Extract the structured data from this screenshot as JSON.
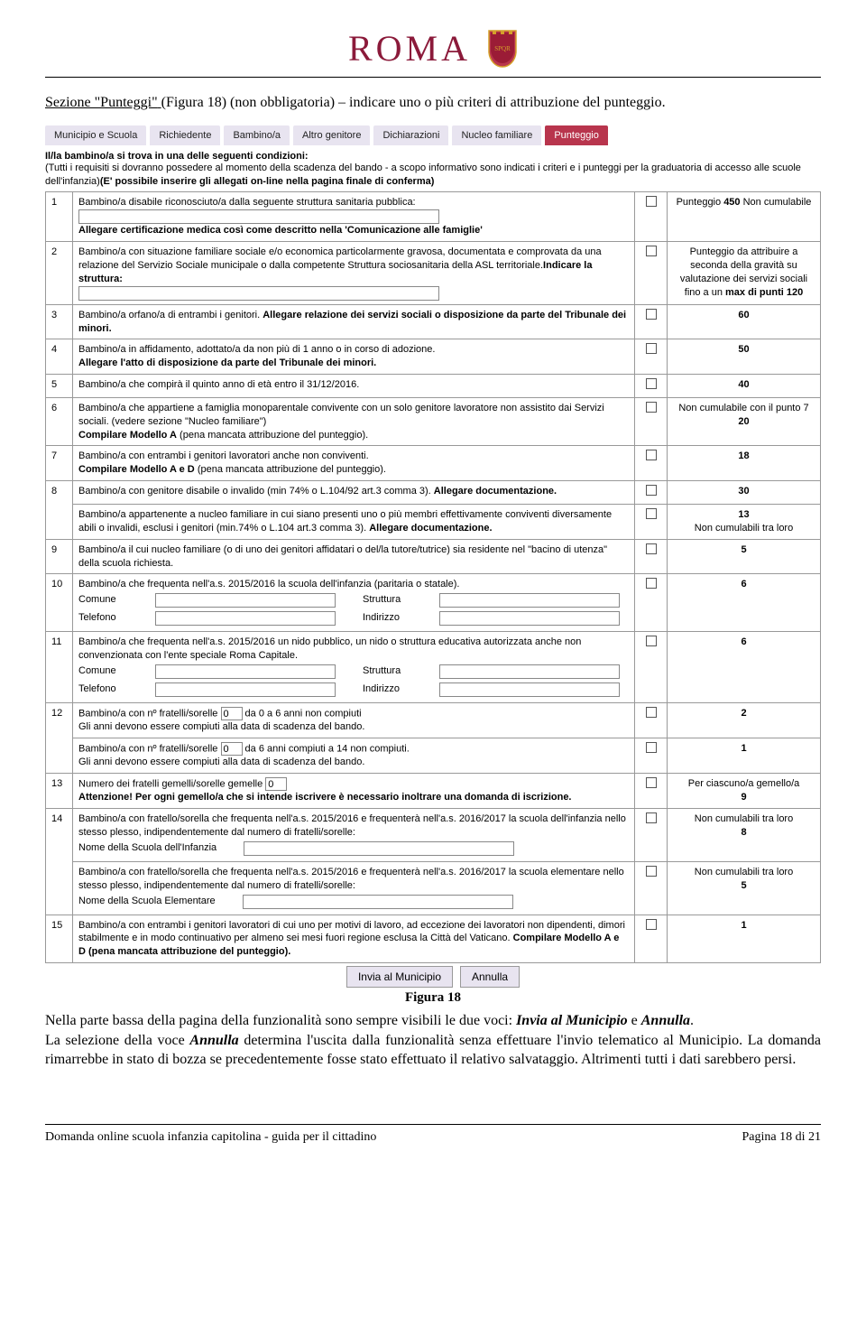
{
  "header": {
    "logo_text": "ROMA"
  },
  "intro": {
    "section_label": "Sezione \"Punteggi\"",
    "figure_ref": "(Figura 18)",
    "rest": "  (non obbligatoria) – indicare uno o più criteri di attribuzione del punteggio."
  },
  "tabs": [
    "Municipio e Scuola",
    "Richiedente",
    "Bambino/a",
    "Altro genitore",
    "Dichiarazioni",
    "Nucleo familiare",
    "Punteggio"
  ],
  "active_tab_index": 6,
  "cond_title": "Il/la bambino/a si trova in una delle seguenti condizioni:",
  "cond_sub_pre": "(Tutti i requisiti si dovranno possedere al momento della scadenza del bando - a scopo informativo sono indicati i criteri e i punteggi per la graduatoria di accesso alle scuole dell'infanzia)",
  "cond_sub_bold": "(E' possibile inserire gli allegati on-line nella pagina finale di conferma)",
  "rows": [
    {
      "n": "1",
      "desc": "Bambino/a disabile riconosciuto/a dalla seguente struttura sanitaria pubblica:",
      "sub_input": true,
      "alleg": "Allegare certificazione medica così come descritto nella 'Comunicazione alle famiglie'",
      "pts": "Punteggio <b>450</b> Non cumulabile"
    },
    {
      "n": "2",
      "desc": "Bambino/a con situazione familiare sociale e/o economica particolarmente gravosa, documentata e comprovata da una relazione del Servizio Sociale municipale o dalla competente Struttura sociosanitaria della ASL territoriale.<b>Indicare la struttura:</b>",
      "sub_input": true,
      "pts": "Punteggio da attribuire a seconda della gravità su valutazione dei servizi sociali fino a un <b>max di punti  120</b>"
    },
    {
      "n": "3",
      "desc": "Bambino/a orfano/a di entrambi i genitori. <b>Allegare relazione dei servizi sociali o disposizione da parte del Tribunale dei minori.</b>",
      "pts": "<b>60</b>"
    },
    {
      "n": "4",
      "desc": "Bambino/a in affidamento, adottato/a da non più di 1 anno o in corso di adozione.<br><b>Allegare l'atto di disposizione da parte del Tribunale dei minori.</b>",
      "pts": "<b>50</b>"
    },
    {
      "n": "5",
      "desc": "Bambino/a che compirà il quinto anno di età entro il 31/12/2016.",
      "pts": "<b>40</b>"
    },
    {
      "n": "6",
      "desc": "Bambino/a che appartiene a famiglia monoparentale convivente con un solo genitore lavoratore non assistito dai Servizi sociali. (vedere sezione \"Nucleo familiare\")<br><b>Compilare Modello A</b> (pena mancata attribuzione del punteggio).",
      "pts": "Non cumulabile con il punto 7<br><b>20</b>"
    },
    {
      "n": "7",
      "desc": "Bambino/a con entrambi i genitori lavoratori anche non conviventi.<br><b>Compilare Modello A e D</b> (pena mancata attribuzione del punteggio).",
      "pts": "<b>18</b>"
    },
    {
      "n": "8",
      "desc_a": "Bambino/a con genitore disabile o invalido (min 74% o L.104/92 art.3 comma 3). <b>Allegare documentazione.</b>",
      "pts_a": "<b>30</b>",
      "desc_b": "Bambino/a appartenente a nucleo familiare in cui siano presenti uno o più membri effettivamente conviventi diversamente abili o invalidi, esclusi i genitori (min.74% o L.104 art.3 comma 3). <b>Allegare documentazione.</b>",
      "pts_b": "<b>13</b><br>Non cumulabili tra loro"
    },
    {
      "n": "9",
      "desc": "Bambino/a il cui nucleo familiare (o di uno dei genitori affidatari o del/la tutore/tutrice) sia residente nel \"bacino di utenza\" della scuola richiesta.",
      "pts": "<b>5</b>"
    },
    {
      "n": "10",
      "desc": "Bambino/a che frequenta nell'a.s. 2015/2016 la scuola dell'infanzia (paritaria o statale).",
      "fields": [
        "Comune",
        "Struttura",
        "Telefono",
        "Indirizzo"
      ],
      "pts": "<b>6</b>"
    },
    {
      "n": "11",
      "desc": "Bambino/a che frequenta nell'a.s. 2015/2016 un nido pubblico, un nido o struttura educativa autorizzata anche non convenzionata con l'ente speciale Roma Capitale.",
      "fields": [
        "Comune",
        "Struttura",
        "Telefono",
        "Indirizzo"
      ],
      "pts": "<b>6</b>"
    },
    {
      "n": "12",
      "desc_a": "Bambino/a con nº fratelli/sorelle [0] da 0 a 6 anni non compiuti<br>Gli anni devono essere compiuti alla data di scadenza del bando.",
      "pts_a": "<b>2</b>",
      "desc_b": "Bambino/a con nº fratelli/sorelle [0] da 6 anni compiuti a 14 non compiuti.<br>Gli anni devono essere compiuti alla data di scadenza del bando.",
      "pts_b": "<b>1</b>"
    },
    {
      "n": "13",
      "desc": "Numero dei fratelli gemelli/sorelle gemelle [0]<br><b>Attenzione! Per ogni gemello/a che si intende iscrivere è necessario inoltrare una domanda di iscrizione.</b>",
      "pts": "Per ciascuno/a gemello/a<br><b>9</b>"
    },
    {
      "n": "14",
      "desc_a": "Bambino/a con fratello/sorella che frequenta nell'a.s. 2015/2016  e frequenterà nell'a.s. 2016/2017  la scuola dell'infanzia nello stesso plesso, indipendentemente dal numero di fratelli/sorelle:",
      "lbl_a": "Nome della Scuola dell'Infanzia",
      "pts_a": "Non cumulabili tra loro<br><b>8</b>",
      "desc_b": "Bambino/a con fratello/sorella che frequenta nell'a.s. 2015/2016  e frequenterà nell'a.s. 2016/2017  la scuola elementare nello stesso plesso, indipendentemente dal numero di fratelli/sorelle:",
      "lbl_b": "Nome della Scuola Elementare",
      "pts_b": "Non cumulabili tra loro<br><b>5</b>"
    },
    {
      "n": "15",
      "desc": "Bambino/a con entrambi i genitori lavoratori di cui uno per motivi di lavoro, ad eccezione dei lavoratori non dipendenti, dimori stabilmente e in modo continuativo per almeno sei mesi fuori regione esclusa la Città del Vaticano. <b>Compilare Modello A e D (pena mancata attribuzione del punteggio).</b>",
      "pts": "<b>1</b>"
    }
  ],
  "buttons": {
    "invia": "Invia al Municipio",
    "annulla": "Annulla"
  },
  "caption": "Figura 18",
  "post_text": "Nella parte bassa della pagina della funzionalità sono sempre visibili le due voci: <i><b>Invia al Municipio</b></i> e <i><b>Annulla</b></i>.<br>La selezione della voce <i><b>Annulla</b></i> determina l'uscita dalla funzionalità senza effettuare l'invio telematico al Municipio. La domanda rimarrebbe in stato di bozza se precedentemente fosse stato effettuato il relativo salvataggio. Altrimenti tutti i dati sarebbero persi.",
  "footer": {
    "left": "Domanda online scuola infanzia capitolina - guida per il cittadino",
    "right": "Pagina 18 di 21"
  }
}
